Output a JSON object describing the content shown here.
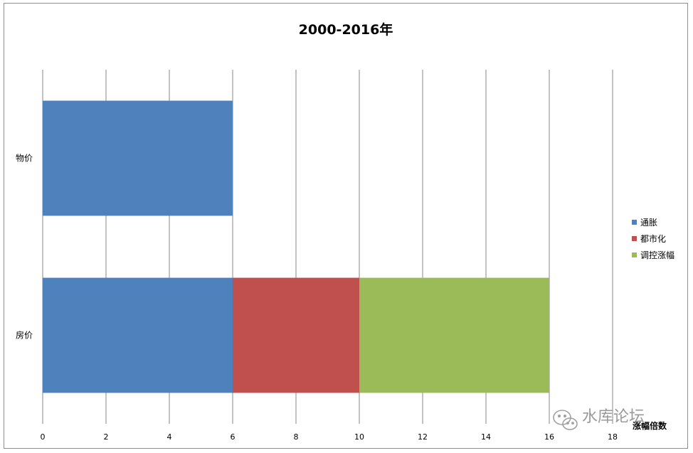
{
  "chart_data": {
    "type": "bar",
    "orientation": "horizontal",
    "stacked": true,
    "title": "2000-2016年",
    "xlabel": "涨幅倍数",
    "ylabel": "",
    "categories": [
      "物价",
      "房价"
    ],
    "series": [
      {
        "name": "通胀",
        "values": [
          6,
          6
        ],
        "color": "#4f81bd"
      },
      {
        "name": "都市化",
        "values": [
          0,
          4
        ],
        "color": "#c0504d"
      },
      {
        "name": "调控涨幅",
        "values": [
          0,
          6
        ],
        "color": "#9bbb59"
      }
    ],
    "xlim": [
      0,
      18
    ],
    "xticks": [
      0,
      2,
      4,
      6,
      8,
      10,
      12,
      14,
      16,
      18
    ],
    "grid": "vertical",
    "legend_position": "right"
  },
  "watermark": {
    "text": "水库论坛"
  }
}
